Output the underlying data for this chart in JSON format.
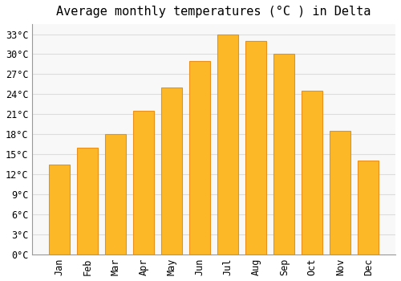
{
  "title": "Average monthly temperatures (°C ) in Delta",
  "months": [
    "Jan",
    "Feb",
    "Mar",
    "Apr",
    "May",
    "Jun",
    "Jul",
    "Aug",
    "Sep",
    "Oct",
    "Nov",
    "Dec"
  ],
  "values": [
    13.5,
    16.0,
    18.0,
    21.5,
    25.0,
    29.0,
    33.0,
    32.0,
    30.0,
    24.5,
    18.5,
    14.0
  ],
  "bar_color": "#FDB827",
  "bar_edge_color": "#E8901A",
  "background_color": "#FFFFFF",
  "plot_bg_color": "#F8F8F8",
  "grid_color": "#DDDDDD",
  "ylim": [
    0,
    34.5
  ],
  "yticks": [
    0,
    3,
    6,
    9,
    12,
    15,
    18,
    21,
    24,
    27,
    30,
    33
  ],
  "title_fontsize": 11,
  "tick_fontsize": 8.5,
  "font_family": "monospace"
}
